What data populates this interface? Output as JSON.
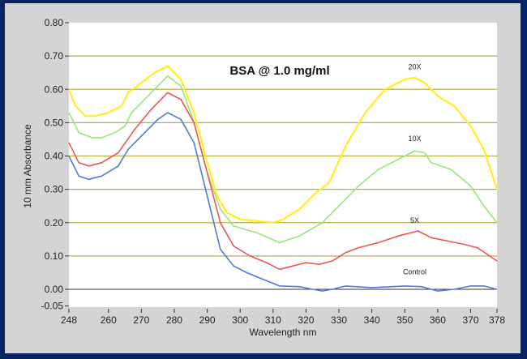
{
  "chart_data": {
    "type": "line",
    "title": "BSA @ 1.0 mg/ml",
    "xlabel": "Wavelength nm",
    "ylabel": "10 mm Absorbance",
    "xlim": [
      248,
      378
    ],
    "ylim": [
      -0.05,
      0.8
    ],
    "x_ticks": [
      "248",
      "260",
      "270",
      "280",
      "290",
      "300",
      "310",
      "320",
      "330",
      "340",
      "350",
      "360",
      "370",
      "378"
    ],
    "y_ticks": [
      "0.80",
      "0.70",
      "0.60",
      "0.50",
      "0.40",
      "0.30",
      "0.20",
      "0.10",
      "0.00",
      "-0.05"
    ],
    "grid": "horizontal",
    "colors": {
      "frame": "#0b2463",
      "panel": "#d4d4d4",
      "plot": "#ffffff",
      "grid": "#b5b04a"
    },
    "series": [
      {
        "name": "20X",
        "color": "#ffee22",
        "label_at": [
          353,
          0.66
        ],
        "points": [
          [
            248,
            0.6
          ],
          [
            250,
            0.55
          ],
          [
            253,
            0.52
          ],
          [
            256,
            0.52
          ],
          [
            260,
            0.53
          ],
          [
            264,
            0.55
          ],
          [
            266,
            0.59
          ],
          [
            270,
            0.62
          ],
          [
            274,
            0.65
          ],
          [
            278,
            0.67
          ],
          [
            282,
            0.63
          ],
          [
            286,
            0.53
          ],
          [
            290,
            0.38
          ],
          [
            293,
            0.28
          ],
          [
            296,
            0.23
          ],
          [
            300,
            0.21
          ],
          [
            305,
            0.205
          ],
          [
            310,
            0.2
          ],
          [
            313,
            0.21
          ],
          [
            318,
            0.24
          ],
          [
            323,
            0.29
          ],
          [
            327,
            0.32
          ],
          [
            332,
            0.43
          ],
          [
            338,
            0.53
          ],
          [
            344,
            0.6
          ],
          [
            350,
            0.63
          ],
          [
            353,
            0.635
          ],
          [
            356,
            0.62
          ],
          [
            360,
            0.58
          ],
          [
            365,
            0.55
          ],
          [
            370,
            0.49
          ],
          [
            374,
            0.42
          ],
          [
            378,
            0.3
          ]
        ]
      },
      {
        "name": "10X",
        "color": "#99e67a",
        "label_at": [
          353,
          0.445
        ],
        "points": [
          [
            248,
            0.53
          ],
          [
            251,
            0.47
          ],
          [
            255,
            0.455
          ],
          [
            258,
            0.455
          ],
          [
            262,
            0.47
          ],
          [
            265,
            0.49
          ],
          [
            267,
            0.53
          ],
          [
            272,
            0.58
          ],
          [
            278,
            0.64
          ],
          [
            282,
            0.61
          ],
          [
            286,
            0.5
          ],
          [
            290,
            0.35
          ],
          [
            294,
            0.24
          ],
          [
            298,
            0.19
          ],
          [
            305,
            0.17
          ],
          [
            312,
            0.14
          ],
          [
            318,
            0.16
          ],
          [
            325,
            0.2
          ],
          [
            330,
            0.25
          ],
          [
            336,
            0.31
          ],
          [
            342,
            0.36
          ],
          [
            348,
            0.39
          ],
          [
            353,
            0.415
          ],
          [
            356,
            0.41
          ],
          [
            358,
            0.38
          ],
          [
            364,
            0.36
          ],
          [
            370,
            0.31
          ],
          [
            374,
            0.25
          ],
          [
            378,
            0.2
          ]
        ]
      },
      {
        "name": "5X",
        "color": "#ee5555",
        "label_at": [
          353,
          0.2
        ],
        "points": [
          [
            248,
            0.44
          ],
          [
            251,
            0.38
          ],
          [
            254,
            0.37
          ],
          [
            258,
            0.38
          ],
          [
            263,
            0.41
          ],
          [
            268,
            0.48
          ],
          [
            273,
            0.54
          ],
          [
            278,
            0.59
          ],
          [
            282,
            0.57
          ],
          [
            286,
            0.5
          ],
          [
            290,
            0.35
          ],
          [
            294,
            0.2
          ],
          [
            298,
            0.13
          ],
          [
            303,
            0.1
          ],
          [
            308,
            0.08
          ],
          [
            312,
            0.06
          ],
          [
            316,
            0.07
          ],
          [
            320,
            0.08
          ],
          [
            324,
            0.075
          ],
          [
            328,
            0.085
          ],
          [
            332,
            0.11
          ],
          [
            336,
            0.125
          ],
          [
            342,
            0.14
          ],
          [
            348,
            0.16
          ],
          [
            354,
            0.175
          ],
          [
            358,
            0.155
          ],
          [
            363,
            0.145
          ],
          [
            368,
            0.135
          ],
          [
            372,
            0.125
          ],
          [
            378,
            0.085
          ]
        ]
      },
      {
        "name": "Control",
        "color": "#5577dd",
        "label_at": [
          353,
          0.045
        ],
        "points": [
          [
            248,
            0.4
          ],
          [
            251,
            0.34
          ],
          [
            254,
            0.33
          ],
          [
            258,
            0.34
          ],
          [
            263,
            0.37
          ],
          [
            266,
            0.42
          ],
          [
            270,
            0.46
          ],
          [
            275,
            0.51
          ],
          [
            278,
            0.53
          ],
          [
            282,
            0.51
          ],
          [
            286,
            0.44
          ],
          [
            290,
            0.28
          ],
          [
            294,
            0.12
          ],
          [
            298,
            0.07
          ],
          [
            302,
            0.05
          ],
          [
            307,
            0.03
          ],
          [
            312,
            0.01
          ],
          [
            318,
            0.008
          ],
          [
            322,
            0.0
          ],
          [
            325,
            -0.005
          ],
          [
            328,
            0.0
          ],
          [
            332,
            0.01
          ],
          [
            340,
            0.005
          ],
          [
            350,
            0.01
          ],
          [
            355,
            0.008
          ],
          [
            360,
            -0.005
          ],
          [
            365,
            0.0
          ],
          [
            370,
            0.01
          ],
          [
            374,
            0.01
          ],
          [
            378,
            0.0
          ]
        ]
      }
    ]
  }
}
